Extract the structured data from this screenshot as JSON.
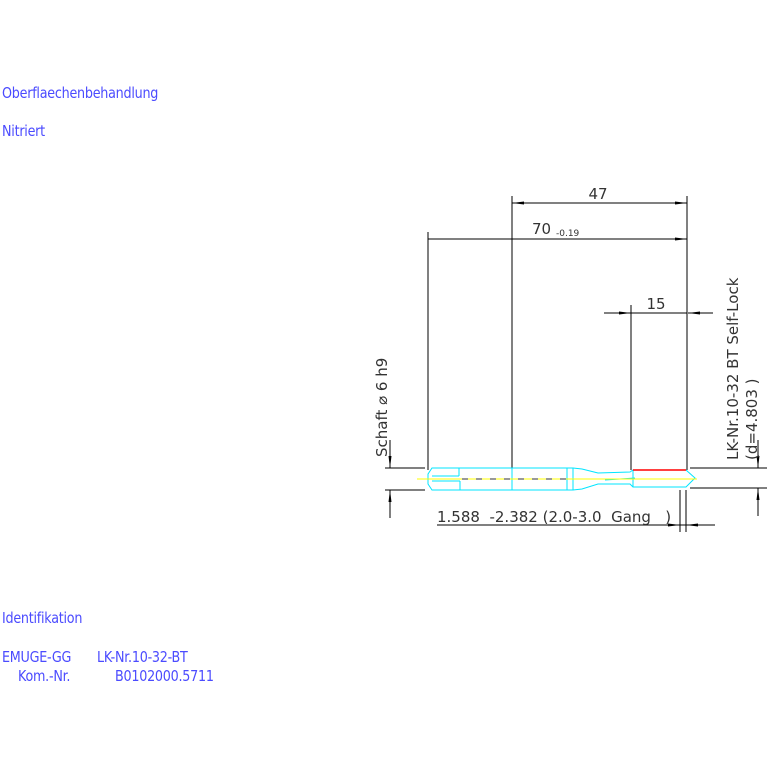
{
  "notes": {
    "surface_heading": "Oberflaechenbehandlung",
    "surface_value": "Nitriert",
    "ident_heading": "Identifikation",
    "maker": "EMUGE-GG",
    "part": "LK-Nr.10-32-BT",
    "kom_label": "Kom.-Nr.",
    "kom_value": "B0102000.5711"
  },
  "drawing": {
    "dim_47": "47",
    "dim_70": "70",
    "dim_70_tol": "-0.19",
    "dim_15": "15",
    "shank_label": "Schaft ⌀ 6 h9",
    "thread_label": "LK-Nr.10-32 BT Self-Lock",
    "thread_d": "(d=4.803 )",
    "range_label": "1.588  -2.382 (2.0-3.0  Gang   )",
    "colors": {
      "outline": "#00e5ff",
      "centerline": "#ffff00",
      "thread": "#ff0000",
      "dimension": "#000000",
      "text": "#4b4bff"
    }
  }
}
